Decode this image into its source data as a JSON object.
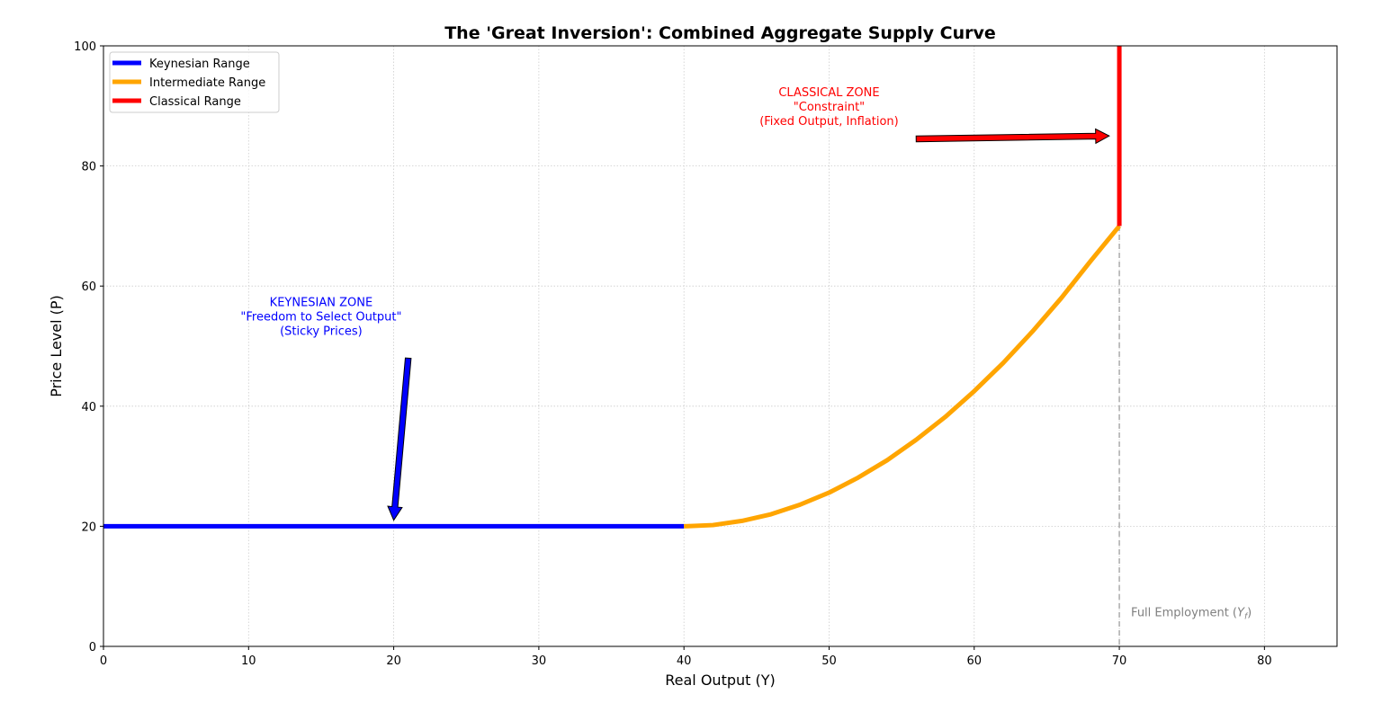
{
  "chart_data": {
    "type": "line",
    "title": "The 'Great Inversion': Combined Aggregate Supply Curve",
    "xlabel": "Real Output (Y)",
    "ylabel": "Price Level (P)",
    "xlim": [
      0,
      85
    ],
    "ylim": [
      0,
      100
    ],
    "xticks": [
      0,
      10,
      20,
      30,
      40,
      50,
      60,
      70,
      80
    ],
    "yticks": [
      0,
      20,
      40,
      60,
      80,
      100
    ],
    "grid": true,
    "legend_position": "top-left",
    "series": [
      {
        "name": "Keynesian Range",
        "color": "#0000ff",
        "x": [
          0,
          40
        ],
        "y": [
          20,
          20
        ]
      },
      {
        "name": "Intermediate Range",
        "color": "#ffa500",
        "x": [
          40,
          42,
          44,
          46,
          48,
          50,
          52,
          54,
          56,
          58,
          60,
          62,
          64,
          66,
          68,
          70
        ],
        "y": [
          20,
          20.2,
          20.9,
          22,
          23.6,
          25.6,
          28.1,
          31,
          34.4,
          38.2,
          42.5,
          47.2,
          52.4,
          58,
          64.1,
          70
        ]
      },
      {
        "name": "Classical Range",
        "color": "#ff0000",
        "x": [
          70,
          70
        ],
        "y": [
          70,
          100
        ]
      }
    ],
    "reference_line": {
      "x": 70,
      "color": "#999999",
      "label_prefix": "Full Employment (",
      "label_var": "Y",
      "label_sub": "f",
      "label_suffix": ")"
    },
    "annotations": [
      {
        "lines": [
          "KEYNESIAN ZONE",
          "\"Freedom to Select Output\"",
          "(Sticky Prices)"
        ],
        "color": "#0000ff",
        "text_at": [
          15,
          55
        ],
        "arrow_from": [
          21,
          48
        ],
        "arrow_to": [
          20,
          21
        ]
      },
      {
        "lines": [
          "CLASSICAL ZONE",
          "\"Constraint\"",
          "(Fixed Output, Inflation)"
        ],
        "color": "#ff0000",
        "text_at": [
          50,
          90
        ],
        "arrow_from": [
          56,
          84.5
        ],
        "arrow_to": [
          69.3,
          85
        ]
      }
    ]
  }
}
